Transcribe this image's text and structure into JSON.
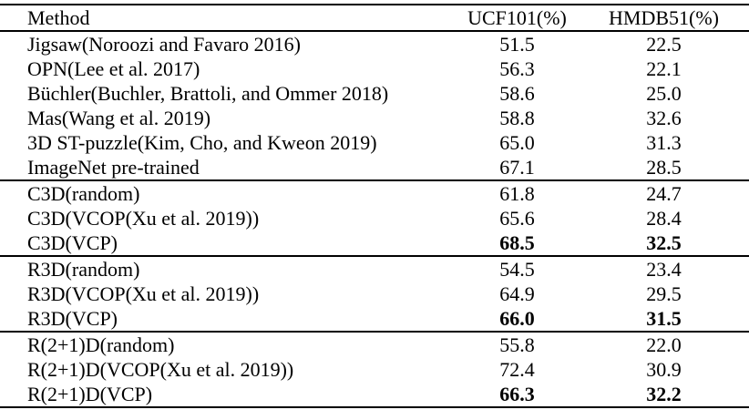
{
  "colors": {
    "text": "#000000",
    "background": "#ffffff",
    "rule": "#000000"
  },
  "table": {
    "columns": [
      "Method",
      "UCF101(%)",
      "HMDB51(%)"
    ],
    "groups": [
      {
        "rows": [
          {
            "method": "Jigsaw(Noroozi and Favaro 2016)",
            "ucf101": "51.5",
            "hmdb51": "22.5",
            "bold": false
          },
          {
            "method": "OPN(Lee et al. 2017)",
            "ucf101": "56.3",
            "hmdb51": "22.1",
            "bold": false
          },
          {
            "method": "Büchler(Buchler, Brattoli, and Ommer 2018)",
            "ucf101": "58.6",
            "hmdb51": "25.0",
            "bold": false
          },
          {
            "method": "Mas(Wang et al. 2019)",
            "ucf101": "58.8",
            "hmdb51": "32.6",
            "bold": false
          },
          {
            "method": "3D ST-puzzle(Kim, Cho, and Kweon 2019)",
            "ucf101": "65.0",
            "hmdb51": "31.3",
            "bold": false
          },
          {
            "method": "ImageNet pre-trained",
            "ucf101": "67.1",
            "hmdb51": "28.5",
            "bold": false
          }
        ]
      },
      {
        "rows": [
          {
            "method": "C3D(random)",
            "ucf101": "61.8",
            "hmdb51": "24.7",
            "bold": false
          },
          {
            "method": "C3D(VCOP(Xu et al. 2019))",
            "ucf101": "65.6",
            "hmdb51": "28.4",
            "bold": false
          },
          {
            "method": "C3D(VCP)",
            "ucf101": "68.5",
            "hmdb51": "32.5",
            "bold": true
          }
        ]
      },
      {
        "rows": [
          {
            "method": "R3D(random)",
            "ucf101": "54.5",
            "hmdb51": "23.4",
            "bold": false
          },
          {
            "method": "R3D(VCOP(Xu et al. 2019))",
            "ucf101": "64.9",
            "hmdb51": "29.5",
            "bold": false
          },
          {
            "method": "R3D(VCP)",
            "ucf101": "66.0",
            "hmdb51": "31.5",
            "bold": true
          }
        ]
      },
      {
        "rows": [
          {
            "method": "R(2+1)D(random)",
            "ucf101": "55.8",
            "hmdb51": "22.0",
            "bold": false
          },
          {
            "method": "R(2+1)D(VCOP(Xu et al. 2019))",
            "ucf101": "72.4",
            "hmdb51": "30.9",
            "bold": false
          },
          {
            "method": "R(2+1)D(VCP)",
            "ucf101": "66.3",
            "hmdb51": "32.2",
            "bold": true
          }
        ]
      }
    ]
  }
}
